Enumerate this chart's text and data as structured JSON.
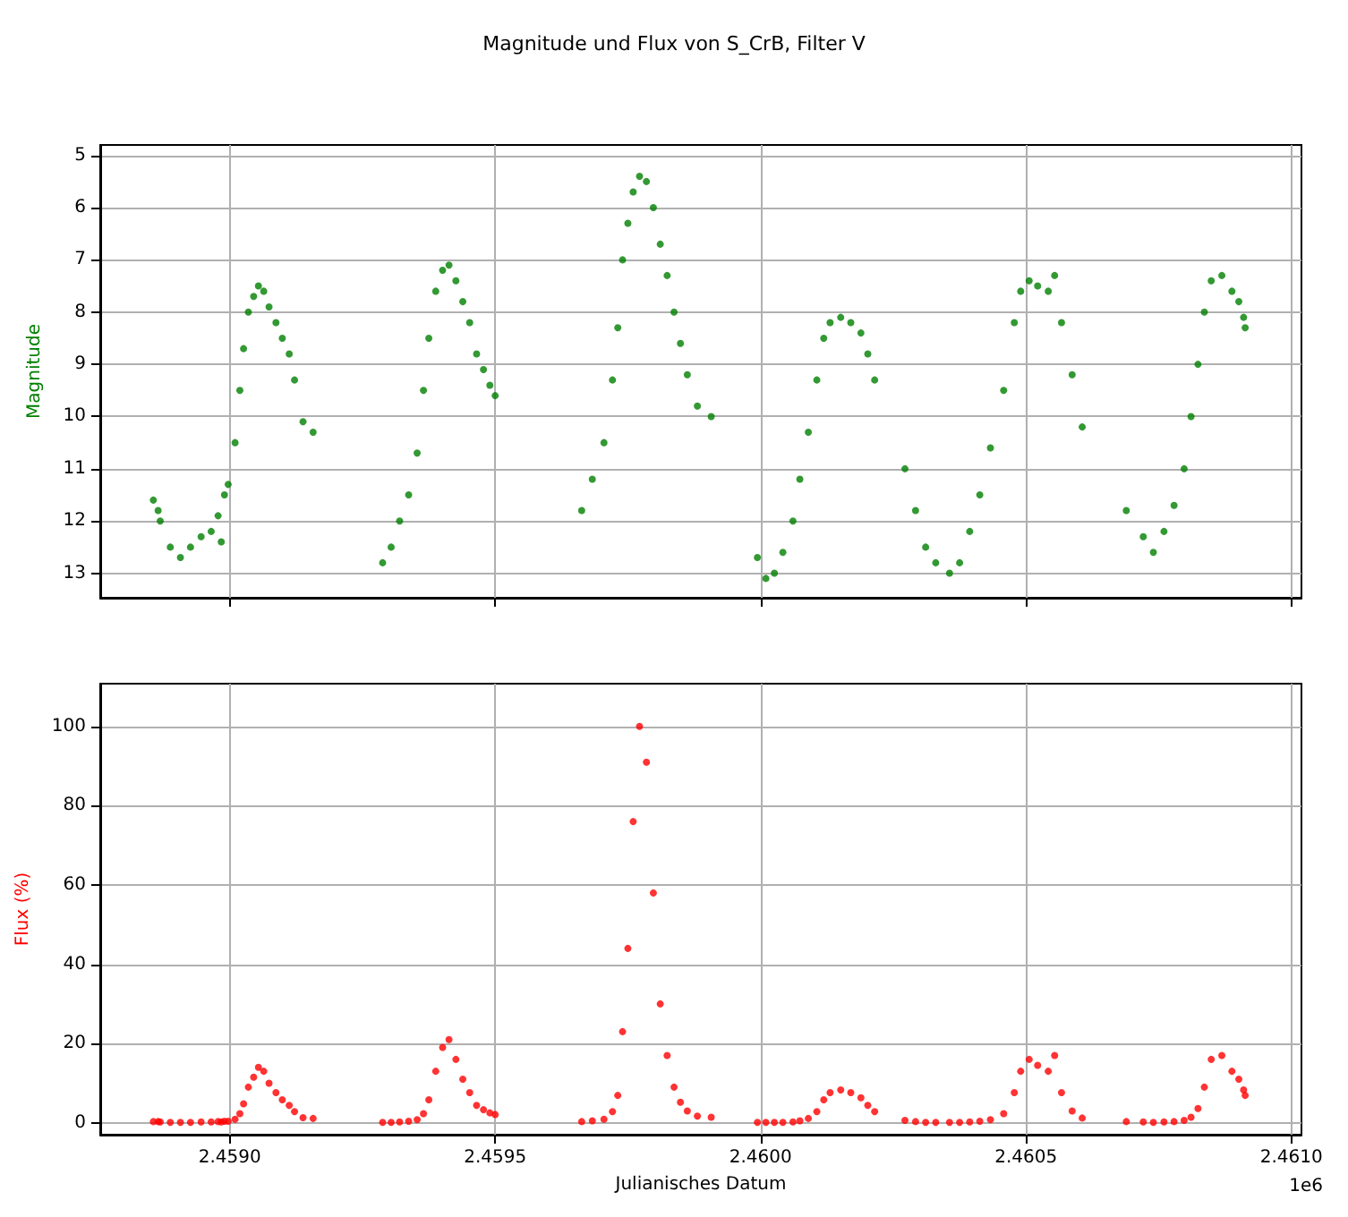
{
  "chart_data": [
    {
      "type": "scatter",
      "title": "Magnitude und Flux von S_CrB, Filter V",
      "ylabel": "Magnitude",
      "xlim": [
        2.458756,
        2.461019
      ],
      "ylim": [
        13.47,
        4.8
      ],
      "xticks": [
        {
          "value": 2.459,
          "label": null
        },
        {
          "value": 2.4595,
          "label": null
        },
        {
          "value": 2.46,
          "label": null
        },
        {
          "value": 2.4605,
          "label": null
        },
        {
          "value": 2.461,
          "label": null
        }
      ],
      "yticks": [
        5,
        6,
        7,
        8,
        9,
        10,
        11,
        12,
        13
      ],
      "tick_labels": "y",
      "grid": true,
      "marker": "circle",
      "series": [
        {
          "color": "#008000",
          "x": [
            2.458856,
            2.458865,
            2.458869,
            2.458888,
            2.458907,
            2.458926,
            2.458946,
            2.458965,
            2.458978,
            2.458984,
            2.45899,
            2.458997,
            2.45901,
            2.459019,
            2.459026,
            2.459035,
            2.459045,
            2.459054,
            2.459064,
            2.459074,
            2.459087,
            2.459099,
            2.459112,
            2.459122,
            2.459138,
            2.459157,
            2.459288,
            2.459304,
            2.45932,
            2.459337,
            2.459353,
            2.459365,
            2.459375,
            2.459388,
            2.459401,
            2.459413,
            2.459426,
            2.459439,
            2.459452,
            2.459465,
            2.459478,
            2.45949,
            2.4595,
            2.459663,
            2.459683,
            2.459705,
            2.459721,
            2.459731,
            2.45974,
            2.45975,
            2.45976,
            2.459772,
            2.459785,
            2.459798,
            2.459811,
            2.459824,
            2.459837,
            2.459849,
            2.459862,
            2.459881,
            2.459907,
            2.459994,
            2.46001,
            2.460026,
            2.460042,
            2.460061,
            2.460074,
            2.46009,
            2.460106,
            2.460119,
            2.460131,
            2.460151,
            2.46017,
            2.460189,
            2.460202,
            2.460215,
            2.460272,
            2.460292,
            2.460311,
            2.46033,
            2.460356,
            2.460375,
            2.460394,
            2.460413,
            2.460433,
            2.460458,
            2.460478,
            2.46049,
            2.460506,
            2.460522,
            2.460542,
            2.460554,
            2.460567,
            2.460587,
            2.460606,
            2.460689,
            2.460721,
            2.46074,
            2.46076,
            2.460779,
            2.460798,
            2.460811,
            2.460824,
            2.460836,
            2.460849,
            2.460869,
            2.460888,
            2.460901,
            2.46091,
            2.460913
          ],
          "values": [
            11.6,
            11.8,
            12.0,
            12.5,
            12.7,
            12.5,
            12.3,
            12.2,
            11.9,
            12.4,
            11.5,
            11.3,
            10.5,
            9.5,
            8.7,
            8.0,
            7.7,
            7.5,
            7.6,
            7.9,
            8.2,
            8.5,
            8.8,
            9.3,
            10.1,
            10.3,
            12.8,
            12.5,
            12.0,
            11.5,
            10.7,
            9.5,
            8.5,
            7.6,
            7.2,
            7.1,
            7.4,
            7.8,
            8.2,
            8.8,
            9.1,
            9.4,
            9.6,
            11.8,
            11.2,
            10.5,
            9.3,
            8.3,
            7.0,
            6.3,
            5.7,
            5.4,
            5.5,
            6.0,
            6.7,
            7.3,
            8.0,
            8.6,
            9.2,
            9.8,
            10.0,
            12.7,
            13.1,
            13.0,
            12.6,
            12.0,
            11.2,
            10.3,
            9.3,
            8.5,
            8.2,
            8.1,
            8.2,
            8.4,
            8.8,
            9.3,
            11.0,
            11.8,
            12.5,
            12.8,
            13.0,
            12.8,
            12.2,
            11.5,
            10.6,
            9.5,
            8.2,
            7.6,
            7.4,
            7.5,
            7.6,
            7.3,
            8.2,
            9.2,
            10.2,
            11.8,
            12.3,
            12.6,
            12.2,
            11.7,
            11.0,
            10.0,
            9.0,
            8.0,
            7.4,
            7.3,
            7.6,
            7.8,
            8.1,
            8.3
          ]
        }
      ]
    },
    {
      "type": "scatter",
      "xlabel": "Julianisches Datum",
      "ylabel": "Flux (%)",
      "annotations": [
        "1e6"
      ],
      "xlim": [
        2.458756,
        2.461019
      ],
      "ylim": [
        -3,
        110.8
      ],
      "xticks": [
        {
          "value": 2.459,
          "label": "2.4590"
        },
        {
          "value": 2.4595,
          "label": "2.4595"
        },
        {
          "value": 2.46,
          "label": "2.4600"
        },
        {
          "value": 2.4605,
          "label": "2.4605"
        },
        {
          "value": 2.461,
          "label": "2.4610"
        }
      ],
      "yticks": [
        0,
        20,
        40,
        60,
        80,
        100
      ],
      "grid": true,
      "marker": "circle",
      "series": [
        {
          "color": "#ff0000",
          "x": [
            2.458856,
            2.458865,
            2.458869,
            2.458888,
            2.458907,
            2.458926,
            2.458946,
            2.458965,
            2.458978,
            2.458984,
            2.45899,
            2.458997,
            2.45901,
            2.459019,
            2.459026,
            2.459035,
            2.459045,
            2.459054,
            2.459064,
            2.459074,
            2.459087,
            2.459099,
            2.459112,
            2.459122,
            2.459138,
            2.459157,
            2.459288,
            2.459304,
            2.45932,
            2.459337,
            2.459353,
            2.459365,
            2.459375,
            2.459388,
            2.459401,
            2.459413,
            2.459426,
            2.459439,
            2.459452,
            2.459465,
            2.459478,
            2.45949,
            2.4595,
            2.459663,
            2.459683,
            2.459705,
            2.459721,
            2.459731,
            2.45974,
            2.45975,
            2.45976,
            2.459772,
            2.459785,
            2.459798,
            2.459811,
            2.459824,
            2.459837,
            2.459849,
            2.459862,
            2.459881,
            2.459907,
            2.459994,
            2.46001,
            2.460026,
            2.460042,
            2.460061,
            2.460074,
            2.46009,
            2.460106,
            2.460119,
            2.460131,
            2.460151,
            2.46017,
            2.460189,
            2.460202,
            2.460215,
            2.460272,
            2.460292,
            2.460311,
            2.46033,
            2.460356,
            2.460375,
            2.460394,
            2.460413,
            2.460433,
            2.460458,
            2.460478,
            2.46049,
            2.460506,
            2.460522,
            2.460542,
            2.460554,
            2.460567,
            2.460587,
            2.460606,
            2.460689,
            2.460721,
            2.46074,
            2.46076,
            2.460779,
            2.460798,
            2.460811,
            2.460824,
            2.460836,
            2.460849,
            2.460869,
            2.460888,
            2.460901,
            2.46091,
            2.460913
          ],
          "values": [
            0.3,
            0.3,
            0.2,
            0.1,
            0.1,
            0.1,
            0.2,
            0.2,
            0.3,
            0.2,
            0.4,
            0.4,
            0.9,
            2.3,
            4.8,
            9,
            11.5,
            14,
            13,
            10,
            7.6,
            5.8,
            4.4,
            2.8,
            1.3,
            1.1,
            0.1,
            0.1,
            0.2,
            0.4,
            0.8,
            2.3,
            5.8,
            13,
            19,
            21,
            16,
            11,
            7.6,
            4.4,
            3.3,
            2.5,
            2.1,
            0.3,
            0.5,
            0.9,
            2.8,
            6.9,
            23,
            44,
            76,
            100,
            91,
            58,
            30,
            17,
            9,
            5.2,
            3,
            1.7,
            1.4,
            0.1,
            0.1,
            0.1,
            0.1,
            0.2,
            0.5,
            1.1,
            2.8,
            5.8,
            7.6,
            8.3,
            7.6,
            6.3,
            4.4,
            2.8,
            0.6,
            0.3,
            0.1,
            0.1,
            0.1,
            0.1,
            0.2,
            0.4,
            0.8,
            2.3,
            7.6,
            13,
            16,
            14.5,
            13,
            17,
            7.6,
            3,
            1.2,
            0.3,
            0.2,
            0.1,
            0.2,
            0.3,
            0.6,
            1.4,
            3.6,
            9,
            16,
            17,
            13,
            11,
            8.3,
            6.9
          ]
        }
      ]
    }
  ]
}
